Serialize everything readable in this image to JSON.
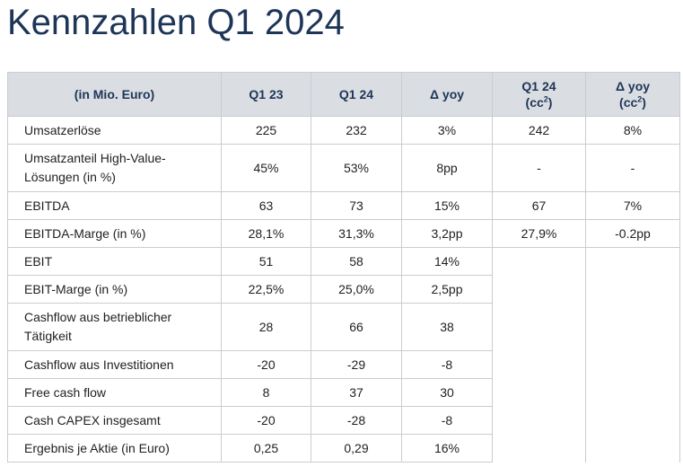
{
  "title": "Kennzahlen Q1 2024",
  "table": {
    "headers": [
      {
        "text": "(in Mio. Euro)"
      },
      {
        "text": "Q1 23"
      },
      {
        "text": "Q1 24"
      },
      {
        "text": "Δ yoy"
      },
      {
        "text": "Q1 24",
        "line2": "(cc",
        "sup": "2",
        "close": ")"
      },
      {
        "text": "Δ yoy",
        "line2": "(cc",
        "sup": "2",
        "close": ")"
      }
    ],
    "rows": [
      {
        "label": "Umsatzerlöse",
        "q123": "225",
        "q124": "232",
        "dyoy": "3%",
        "q124cc": "242",
        "dyoycc": "8%"
      },
      {
        "label": "Umsatzanteil High-Value-Lösungen (in %)",
        "q123": "45%",
        "q124": "53%",
        "dyoy": "8pp",
        "q124cc": "-",
        "dyoycc": "-"
      },
      {
        "label": "EBITDA",
        "q123": "63",
        "q124": "73",
        "dyoy": "15%",
        "q124cc": "67",
        "dyoycc": "7%"
      },
      {
        "label": "EBITDA-Marge (in %)",
        "q123": "28,1%",
        "q124": "31,3%",
        "dyoy": "3,2pp",
        "q124cc": "27,9%",
        "dyoycc": "-0.2pp"
      },
      {
        "label": "EBIT",
        "q123": "51",
        "q124": "58",
        "dyoy": "14%"
      },
      {
        "label": "EBIT-Marge (in %)",
        "q123": "22,5%",
        "q124": "25,0%",
        "dyoy": "2,5pp"
      },
      {
        "label": "Cashflow aus betrieblicher Tätigkeit",
        "q123": "28",
        "q124": "66",
        "dyoy": "38"
      },
      {
        "label": "Cashflow aus Investitionen",
        "q123": "-20",
        "q124": "-29",
        "dyoy": "-8"
      },
      {
        "label": "Free cash flow",
        "q123": "8",
        "q124": "37",
        "dyoy": "30"
      },
      {
        "label": "Cash CAPEX insgesamt",
        "q123": "-20",
        "q124": "-28",
        "dyoy": "-8"
      },
      {
        "label": "Ergebnis je Aktie (in Euro)",
        "q123": "0,25",
        "q124": "0,29",
        "dyoy": "16%"
      }
    ]
  }
}
